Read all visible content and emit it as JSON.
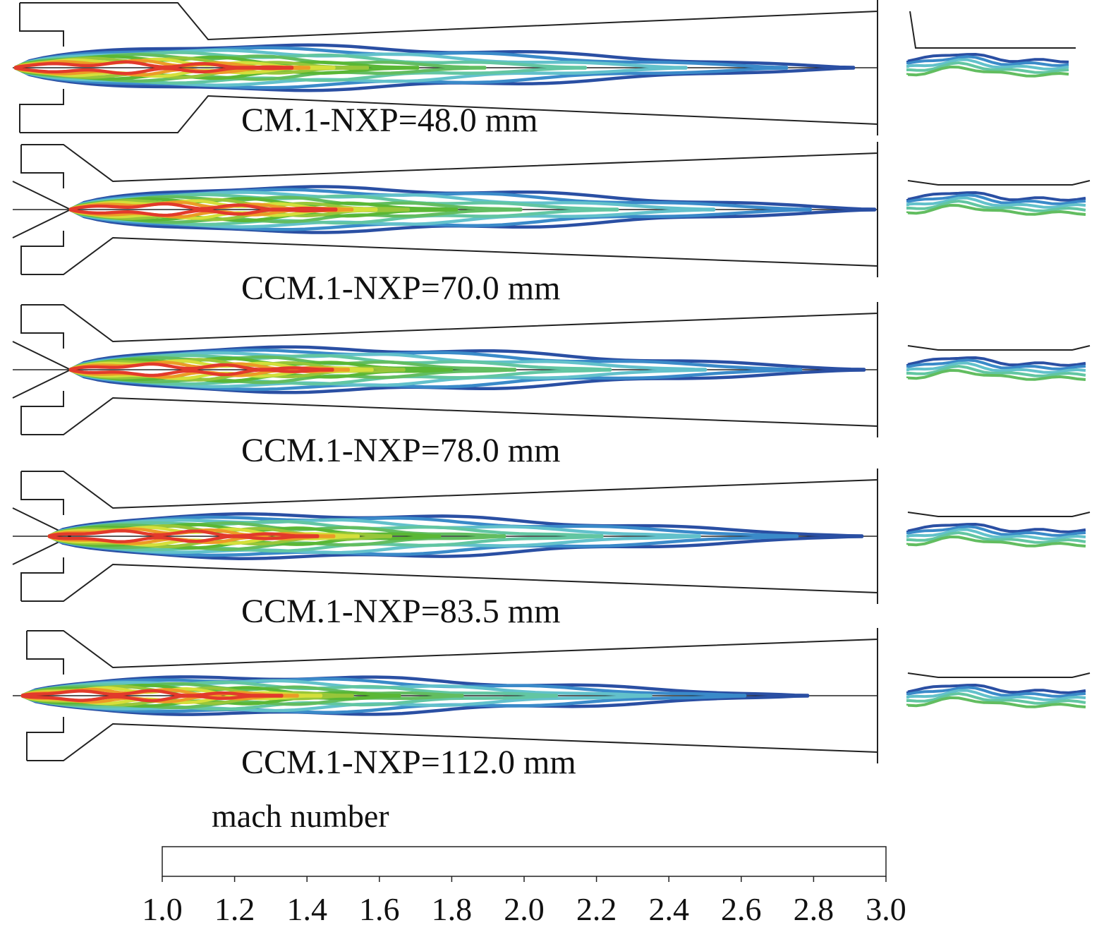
{
  "panels": [
    {
      "label": "CM.1-NXP=48.0 mm"
    },
    {
      "label": "CCM.1-NXP=70.0 mm"
    },
    {
      "label": "CCM.1-NXP=78.0 mm"
    },
    {
      "label": "CCM.1-NXP=83.5 mm"
    },
    {
      "label": "CCM.1-NXP=112.0 mm"
    }
  ],
  "legend": {
    "title": "mach number",
    "ticks": [
      "1.0",
      "1.2",
      "1.4",
      "1.6",
      "1.8",
      "2.0",
      "2.2",
      "2.4",
      "2.6",
      "2.8",
      "3.0"
    ],
    "colors": [
      "#2a4fa3",
      "#3a8ac9",
      "#62c1cb",
      "#62c6a2",
      "#62bd60",
      "#5ab735",
      "#97c63a",
      "#d5df3b",
      "#ec9b26",
      "#e23a2b"
    ]
  }
}
